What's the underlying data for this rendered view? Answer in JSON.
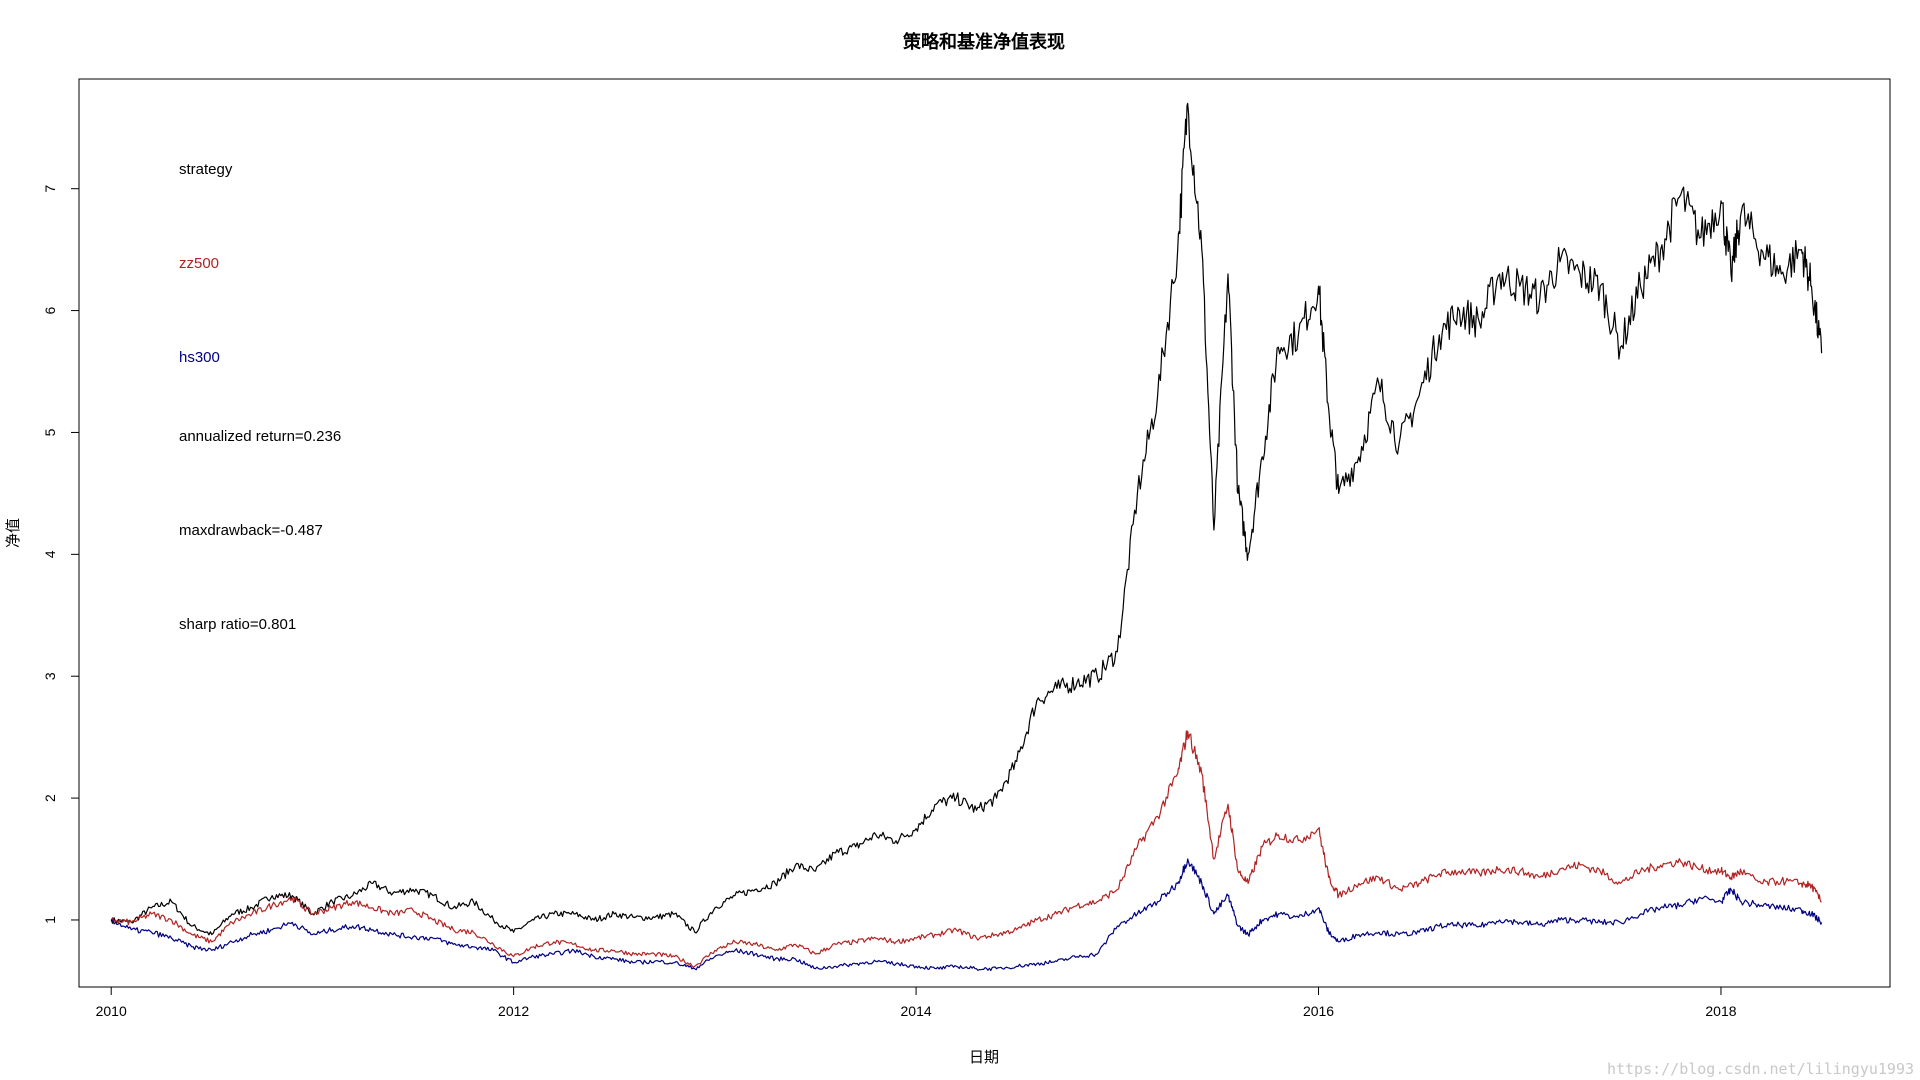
{
  "chart_data": {
    "type": "line",
    "title": "策略和基准净值表现",
    "xlabel": "日期",
    "ylabel": "净值",
    "xlim": [
      2009.84,
      2018.84
    ],
    "ylim": [
      0.45,
      7.9
    ],
    "x_ticks": [
      2010,
      2012,
      2014,
      2016,
      2018
    ],
    "x_tick_labels": [
      "2010",
      "2012",
      "2014",
      "2016",
      "2018"
    ],
    "y_ticks": [
      1,
      2,
      3,
      4,
      5,
      6,
      7
    ],
    "y_tick_labels": [
      "1",
      "2",
      "3",
      "4",
      "5",
      "6",
      "7"
    ],
    "grid": false,
    "series": [
      {
        "name": "strategy",
        "color": "#000000",
        "x": [
          2010.0,
          2010.1,
          2010.2,
          2010.3,
          2010.4,
          2010.5,
          2010.6,
          2010.7,
          2010.8,
          2010.9,
          2011.0,
          2011.1,
          2011.2,
          2011.3,
          2011.4,
          2011.5,
          2011.6,
          2011.7,
          2011.8,
          2011.9,
          2012.0,
          2012.1,
          2012.2,
          2012.3,
          2012.4,
          2012.5,
          2012.6,
          2012.7,
          2012.8,
          2012.9,
          2013.0,
          2013.1,
          2013.2,
          2013.3,
          2013.4,
          2013.5,
          2013.6,
          2013.7,
          2013.8,
          2013.9,
          2014.0,
          2014.1,
          2014.2,
          2014.3,
          2014.4,
          2014.5,
          2014.6,
          2014.7,
          2014.8,
          2014.9,
          2015.0,
          2015.1,
          2015.2,
          2015.3,
          2015.35,
          2015.42,
          2015.48,
          2015.55,
          2015.6,
          2015.65,
          2015.72,
          2015.8,
          2015.9,
          2016.0,
          2016.05,
          2016.1,
          2016.2,
          2016.3,
          2016.4,
          2016.5,
          2016.6,
          2016.7,
          2016.8,
          2016.9,
          2017.0,
          2017.1,
          2017.2,
          2017.3,
          2017.4,
          2017.5,
          2017.6,
          2017.7,
          2017.8,
          2017.9,
          2018.0,
          2018.05,
          2018.1,
          2018.2,
          2018.3,
          2018.4,
          2018.45,
          2018.5
        ],
        "y": [
          1.0,
          0.98,
          1.1,
          1.15,
          0.95,
          0.88,
          1.05,
          1.1,
          1.2,
          1.2,
          1.05,
          1.15,
          1.2,
          1.3,
          1.22,
          1.25,
          1.2,
          1.1,
          1.15,
          1.0,
          0.9,
          1.0,
          1.05,
          1.05,
          1.0,
          1.05,
          1.02,
          1.02,
          1.05,
          0.9,
          1.1,
          1.2,
          1.25,
          1.3,
          1.45,
          1.4,
          1.55,
          1.6,
          1.7,
          1.65,
          1.75,
          1.95,
          2.0,
          1.9,
          2.0,
          2.3,
          2.8,
          2.9,
          2.95,
          3.0,
          3.2,
          4.5,
          5.3,
          6.5,
          7.7,
          6.5,
          4.2,
          6.3,
          4.5,
          4.0,
          4.8,
          5.7,
          5.8,
          6.2,
          5.2,
          4.5,
          4.8,
          5.4,
          4.9,
          5.3,
          5.8,
          6.0,
          5.9,
          6.3,
          6.2,
          6.1,
          6.4,
          6.3,
          6.2,
          5.7,
          6.2,
          6.5,
          6.95,
          6.6,
          6.9,
          6.3,
          6.8,
          6.5,
          6.3,
          6.5,
          6.2,
          5.65
        ]
      },
      {
        "name": "zz500",
        "color": "#b22222",
        "x": [
          2010.0,
          2010.1,
          2010.2,
          2010.3,
          2010.4,
          2010.5,
          2010.6,
          2010.7,
          2010.8,
          2010.9,
          2011.0,
          2011.1,
          2011.2,
          2011.3,
          2011.4,
          2011.5,
          2011.6,
          2011.7,
          2011.8,
          2011.9,
          2012.0,
          2012.1,
          2012.2,
          2012.3,
          2012.4,
          2012.5,
          2012.6,
          2012.7,
          2012.8,
          2012.9,
          2013.0,
          2013.1,
          2013.2,
          2013.3,
          2013.4,
          2013.5,
          2013.6,
          2013.7,
          2013.8,
          2013.9,
          2014.0,
          2014.1,
          2014.2,
          2014.3,
          2014.4,
          2014.5,
          2014.6,
          2014.7,
          2014.8,
          2014.9,
          2015.0,
          2015.1,
          2015.2,
          2015.3,
          2015.35,
          2015.42,
          2015.48,
          2015.55,
          2015.6,
          2015.65,
          2015.72,
          2015.8,
          2015.9,
          2016.0,
          2016.05,
          2016.1,
          2016.2,
          2016.3,
          2016.4,
          2016.5,
          2016.6,
          2016.7,
          2016.8,
          2016.9,
          2017.0,
          2017.1,
          2017.2,
          2017.3,
          2017.4,
          2017.5,
          2017.6,
          2017.7,
          2017.8,
          2017.9,
          2018.0,
          2018.05,
          2018.1,
          2018.2,
          2018.3,
          2018.4,
          2018.45,
          2018.5
        ],
        "y": [
          1.0,
          0.98,
          1.05,
          1.0,
          0.88,
          0.82,
          0.98,
          1.05,
          1.12,
          1.18,
          1.05,
          1.1,
          1.15,
          1.1,
          1.05,
          1.08,
          1.0,
          0.92,
          0.9,
          0.8,
          0.7,
          0.78,
          0.82,
          0.8,
          0.75,
          0.75,
          0.72,
          0.72,
          0.7,
          0.62,
          0.75,
          0.82,
          0.8,
          0.75,
          0.8,
          0.72,
          0.8,
          0.82,
          0.85,
          0.82,
          0.85,
          0.88,
          0.92,
          0.85,
          0.88,
          0.92,
          1.0,
          1.05,
          1.12,
          1.15,
          1.25,
          1.6,
          1.85,
          2.2,
          2.55,
          2.2,
          1.5,
          1.95,
          1.4,
          1.3,
          1.6,
          1.7,
          1.65,
          1.75,
          1.35,
          1.2,
          1.3,
          1.35,
          1.25,
          1.3,
          1.38,
          1.4,
          1.38,
          1.42,
          1.4,
          1.35,
          1.42,
          1.45,
          1.4,
          1.3,
          1.4,
          1.45,
          1.48,
          1.42,
          1.4,
          1.35,
          1.4,
          1.3,
          1.32,
          1.3,
          1.28,
          1.15
        ]
      },
      {
        "name": "hs300",
        "color": "#000080",
        "x": [
          2010.0,
          2010.1,
          2010.2,
          2010.3,
          2010.4,
          2010.5,
          2010.6,
          2010.7,
          2010.8,
          2010.9,
          2011.0,
          2011.1,
          2011.2,
          2011.3,
          2011.4,
          2011.5,
          2011.6,
          2011.7,
          2011.8,
          2011.9,
          2012.0,
          2012.1,
          2012.2,
          2012.3,
          2012.4,
          2012.5,
          2012.6,
          2012.7,
          2012.8,
          2012.9,
          2013.0,
          2013.1,
          2013.2,
          2013.3,
          2013.4,
          2013.5,
          2013.6,
          2013.7,
          2013.8,
          2013.9,
          2014.0,
          2014.1,
          2014.2,
          2014.3,
          2014.4,
          2014.5,
          2014.6,
          2014.7,
          2014.8,
          2014.9,
          2015.0,
          2015.1,
          2015.2,
          2015.3,
          2015.35,
          2015.42,
          2015.48,
          2015.55,
          2015.6,
          2015.65,
          2015.72,
          2015.8,
          2015.9,
          2016.0,
          2016.05,
          2016.1,
          2016.2,
          2016.3,
          2016.4,
          2016.5,
          2016.6,
          2016.7,
          2016.8,
          2016.9,
          2017.0,
          2017.1,
          2017.2,
          2017.3,
          2017.4,
          2017.5,
          2017.6,
          2017.7,
          2017.8,
          2017.9,
          2018.0,
          2018.05,
          2018.1,
          2018.2,
          2018.3,
          2018.4,
          2018.45,
          2018.5
        ],
        "y": [
          1.0,
          0.92,
          0.9,
          0.85,
          0.78,
          0.75,
          0.82,
          0.88,
          0.92,
          0.98,
          0.88,
          0.92,
          0.95,
          0.92,
          0.88,
          0.86,
          0.85,
          0.8,
          0.78,
          0.75,
          0.65,
          0.7,
          0.72,
          0.75,
          0.7,
          0.68,
          0.65,
          0.66,
          0.65,
          0.6,
          0.7,
          0.75,
          0.72,
          0.68,
          0.68,
          0.6,
          0.62,
          0.64,
          0.66,
          0.64,
          0.62,
          0.6,
          0.62,
          0.6,
          0.6,
          0.62,
          0.64,
          0.66,
          0.7,
          0.72,
          0.95,
          1.05,
          1.15,
          1.3,
          1.5,
          1.3,
          1.05,
          1.2,
          0.95,
          0.88,
          1.0,
          1.05,
          1.02,
          1.1,
          0.9,
          0.82,
          0.88,
          0.9,
          0.88,
          0.9,
          0.95,
          0.96,
          0.95,
          1.0,
          0.98,
          0.96,
          1.0,
          1.0,
          0.98,
          0.98,
          1.05,
          1.1,
          1.12,
          1.18,
          1.15,
          1.25,
          1.15,
          1.12,
          1.1,
          1.08,
          1.05,
          0.98
        ]
      }
    ],
    "annotations": [
      {
        "key": "strategy",
        "text": "strategy",
        "color": "#000000"
      },
      {
        "key": "zz500",
        "text": "zz500",
        "color": "#b22222"
      },
      {
        "key": "hs300",
        "text": "hs300",
        "color": "#000080"
      },
      {
        "key": "annualized",
        "text": "annualized return=0.236",
        "color": "#000000"
      },
      {
        "key": "maxdrawback",
        "text": "maxdrawback=-0.487",
        "color": "#000000"
      },
      {
        "key": "sharp",
        "text": "sharp ratio=0.801",
        "color": "#000000"
      }
    ]
  },
  "watermark": "https://blog.csdn.net/lilingyu1993"
}
